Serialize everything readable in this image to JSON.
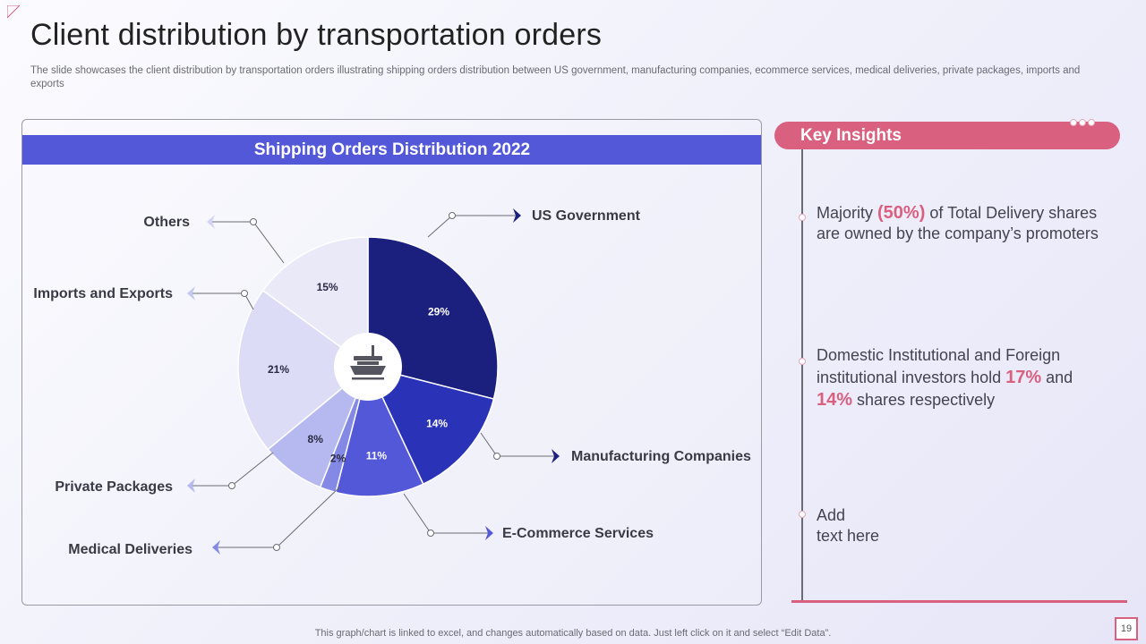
{
  "page": {
    "title": "Client distribution by transportation orders",
    "subtitle": "The slide showcases the client distribution by transportation orders illustrating shipping orders distribution between US government, manufacturing companies, ecommerce services, medical deliveries, private packages, imports and exports",
    "footer_note": "This graph/chart is linked to excel,  and changes automatically based on data. Just left click on it and select “Edit Data”.",
    "page_number": "19"
  },
  "chart_data": {
    "type": "pie",
    "title": "Shipping Orders Distribution 2022",
    "categories": [
      "US Government",
      "Manufacturing Companies",
      "E-Commerce Services",
      "Medical Deliveries",
      "Private Packages",
      "Imports and Exports",
      "Others"
    ],
    "values": [
      29,
      14,
      11,
      2,
      8,
      21,
      15
    ],
    "value_labels": [
      "29%",
      "14%",
      "11%",
      "2%",
      "8%",
      "21%",
      "15%"
    ],
    "colors": [
      "#1b1f7e",
      "#2a32b7",
      "#5258d8",
      "#8589e6",
      "#b6b9ef",
      "#dcdcf7",
      "#e9e9f8"
    ],
    "label_colors": [
      "#ffffff",
      "#ffffff",
      "#ffffff",
      "#2a2a44",
      "#2a2a44",
      "#2a2a44",
      "#2a2a44"
    ],
    "center_icon": "cargo-ship-icon"
  },
  "insights": {
    "header": "Key Insights",
    "items": [
      {
        "t1": "Majority ",
        "h1": "(50%)",
        "t2": " of Total Delivery shares are owned by the company’s promoters",
        "h2": "",
        "t3": "",
        "h3": "",
        "t4": ""
      },
      {
        "t1": "Domestic Institutional and Foreign institutional investors hold ",
        "h1": "17%",
        "t2": " and ",
        "h2": "14%",
        "t3": " shares respectively",
        "h3": "",
        "t4": ""
      },
      {
        "t1": "Add",
        "h1": "",
        "t2": "",
        "h2": "",
        "t3": "",
        "h3": "",
        "t4": ""
      }
    ],
    "item3_line2": "text here"
  },
  "theme": {
    "accent": "#d9607f",
    "banner": "#5258d8"
  }
}
